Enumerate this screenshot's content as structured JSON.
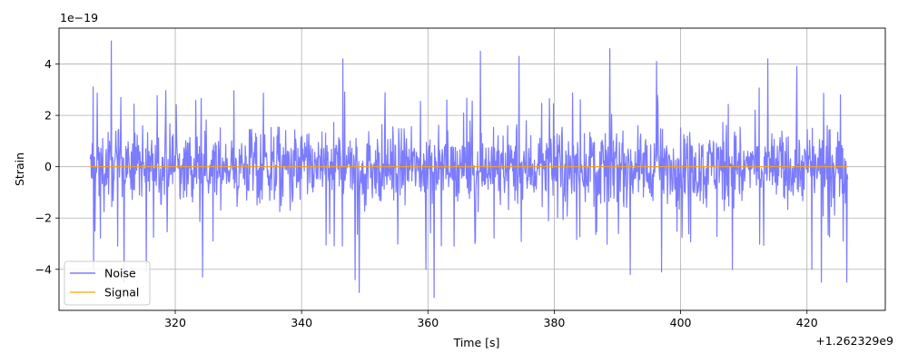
{
  "chart_data": {
    "type": "line",
    "title": "",
    "xlabel": "Time [s]",
    "ylabel": "Strain",
    "x_offset_label": "+1.262329e9",
    "y_multiplier_label": "1e−19",
    "xlim": [
      301.6,
      432.4
    ],
    "ylim": [
      -5.6,
      5.4
    ],
    "x_range": [
      306.5,
      426.5
    ],
    "grid": true,
    "legend_position": "lower-left",
    "x_ticks": [
      {
        "value": 320,
        "label": "320"
      },
      {
        "value": 340,
        "label": "340"
      },
      {
        "value": 360,
        "label": "360"
      },
      {
        "value": 380,
        "label": "380"
      },
      {
        "value": 400,
        "label": "400"
      },
      {
        "value": 420,
        "label": "420"
      }
    ],
    "y_ticks": [
      {
        "value": -4,
        "label": "−4"
      },
      {
        "value": -2,
        "label": "−2"
      },
      {
        "value": 0,
        "label": "0"
      },
      {
        "value": 2,
        "label": "2"
      },
      {
        "value": 4,
        "label": "4"
      }
    ],
    "series": [
      {
        "name": "Noise",
        "color": "#7b7bff",
        "typical_amplitude": 2.3,
        "peak_values": [
          {
            "x": 307.0,
            "y": 3.1
          },
          {
            "x": 307.1,
            "y": -4.0
          },
          {
            "x": 309.9,
            "y": 4.9
          },
          {
            "x": 311.9,
            "y": -4.5
          },
          {
            "x": 315.4,
            "y": -4.1
          },
          {
            "x": 324.3,
            "y": -4.3
          },
          {
            "x": 346.5,
            "y": 4.2
          },
          {
            "x": 348.5,
            "y": -4.4
          },
          {
            "x": 349.1,
            "y": -4.9
          },
          {
            "x": 359.7,
            "y": -4.0
          },
          {
            "x": 361.0,
            "y": -5.1
          },
          {
            "x": 368.3,
            "y": 4.5
          },
          {
            "x": 374.4,
            "y": 4.3
          },
          {
            "x": 388.8,
            "y": 4.6
          },
          {
            "x": 392.0,
            "y": -4.2
          },
          {
            "x": 396.2,
            "y": 4.1
          },
          {
            "x": 397.0,
            "y": -4.1
          },
          {
            "x": 408.2,
            "y": -4.0
          },
          {
            "x": 413.8,
            "y": 4.2
          },
          {
            "x": 418.4,
            "y": 3.9
          },
          {
            "x": 420.8,
            "y": -4.0
          },
          {
            "x": 422.3,
            "y": -4.5
          },
          {
            "x": 425.3,
            "y": 2.8
          },
          {
            "x": 426.3,
            "y": -4.5
          }
        ]
      },
      {
        "name": "Signal",
        "color": "#ffa500",
        "x": [
          306.5,
          426.5
        ],
        "y": [
          0,
          0
        ]
      }
    ]
  }
}
